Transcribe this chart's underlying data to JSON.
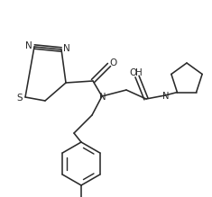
{
  "bg": "#ffffff",
  "lc": "#2a2a2a",
  "lw": 1.15,
  "figsize": [
    2.35,
    2.19
  ],
  "dpi": 100,
  "xlim": [
    0,
    235
  ],
  "ylim": [
    0,
    219
  ]
}
